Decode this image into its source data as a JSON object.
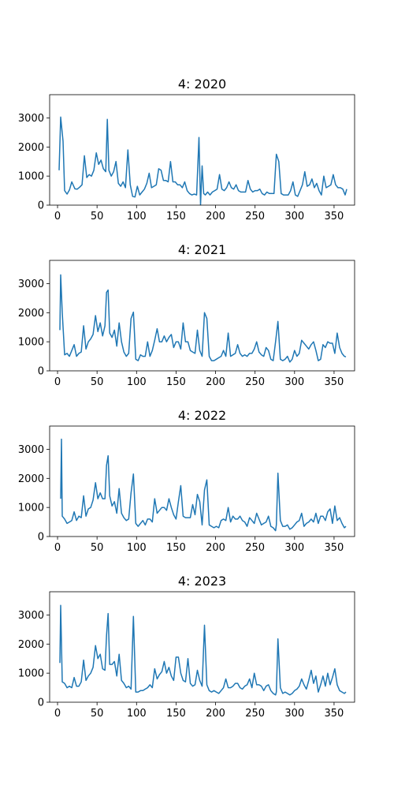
{
  "chart_data": [
    {
      "type": "line",
      "title": "4: 2020",
      "xlabel": "",
      "ylabel": "",
      "xlim": [
        -10,
        376
      ],
      "ylim": [
        0,
        3800
      ],
      "xticks": [
        0,
        50,
        100,
        150,
        200,
        250,
        300,
        350
      ],
      "yticks": [
        0,
        1000,
        2000,
        3000
      ],
      "color": "#1f77b4",
      "series": [
        {
          "x": [
            2,
            4,
            7,
            9,
            12,
            15,
            18,
            22,
            25,
            28,
            31,
            34,
            37,
            40,
            43,
            46,
            49,
            52,
            55,
            58,
            61,
            63,
            65,
            68,
            71,
            74,
            77,
            80,
            83,
            86,
            89,
            92,
            95,
            98,
            101,
            104,
            107,
            110,
            113,
            116,
            119,
            122,
            125,
            128,
            131,
            134,
            137,
            140,
            143,
            146,
            149,
            152,
            155,
            158,
            161,
            164,
            167,
            170,
            173,
            176,
            179,
            181,
            183,
            185,
            187,
            190,
            193,
            196,
            199,
            202,
            205,
            208,
            211,
            214,
            217,
            220,
            223,
            226,
            229,
            232,
            235,
            238,
            241,
            244,
            247,
            250,
            253,
            256,
            259,
            262,
            265,
            268,
            271,
            274,
            277,
            280,
            283,
            286,
            289,
            292,
            295,
            298,
            301,
            304,
            307,
            310,
            313,
            316,
            319,
            322,
            325,
            328,
            331,
            334,
            337,
            340,
            343,
            346,
            349,
            352,
            355,
            358,
            361,
            364,
            366
          ],
          "y": [
            1200,
            3030,
            2200,
            500,
            380,
            520,
            800,
            560,
            550,
            620,
            700,
            1700,
            950,
            1050,
            1000,
            1200,
            1800,
            1400,
            1550,
            1250,
            1150,
            2950,
            1200,
            1000,
            1150,
            1500,
            750,
            650,
            800,
            600,
            1900,
            700,
            300,
            280,
            650,
            350,
            450,
            550,
            750,
            1100,
            600,
            650,
            700,
            1250,
            1200,
            850,
            850,
            800,
            1500,
            800,
            800,
            700,
            700,
            600,
            800,
            500,
            400,
            350,
            380,
            350,
            2330,
            10,
            1350,
            400,
            350,
            450,
            350,
            450,
            500,
            550,
            1050,
            550,
            500,
            600,
            800,
            600,
            550,
            700,
            500,
            450,
            450,
            450,
            850,
            550,
            450,
            500,
            500,
            550,
            400,
            350,
            450,
            400,
            400,
            400,
            1750,
            1500,
            400,
            350,
            350,
            350,
            500,
            800,
            350,
            300,
            500,
            700,
            1150,
            650,
            700,
            900,
            600,
            750,
            500,
            350,
            1000,
            600,
            650,
            700,
            1050,
            700,
            600,
            600,
            550,
            350,
            550
          ]
        }
      ]
    },
    {
      "type": "line",
      "title": "4: 2021",
      "xlabel": "",
      "ylabel": "",
      "xlim": [
        -10,
        376
      ],
      "ylim": [
        0,
        3800
      ],
      "xticks": [
        0,
        50,
        100,
        150,
        200,
        250,
        300,
        350
      ],
      "yticks": [
        0,
        1000,
        2000,
        3000
      ],
      "color": "#1f77b4",
      "series": [
        {
          "x": [
            3,
            4,
            6,
            9,
            12,
            15,
            18,
            21,
            24,
            27,
            30,
            33,
            36,
            39,
            42,
            45,
            48,
            51,
            54,
            57,
            60,
            62,
            64,
            66,
            69,
            72,
            75,
            78,
            81,
            84,
            87,
            90,
            93,
            96,
            99,
            102,
            105,
            108,
            111,
            114,
            117,
            120,
            123,
            126,
            129,
            132,
            135,
            138,
            141,
            144,
            147,
            150,
            153,
            156,
            159,
            162,
            165,
            168,
            171,
            174,
            177,
            180,
            183,
            186,
            189,
            192,
            195,
            198,
            201,
            204,
            207,
            210,
            213,
            216,
            219,
            222,
            225,
            228,
            231,
            234,
            237,
            240,
            243,
            246,
            249,
            252,
            255,
            258,
            261,
            264,
            267,
            270,
            273,
            276,
            279,
            282,
            285,
            288,
            291,
            294,
            297,
            300,
            303,
            306,
            309,
            312,
            315,
            318,
            321,
            324,
            327,
            330,
            333,
            336,
            339,
            342,
            345,
            348,
            351,
            354,
            357,
            360,
            363,
            365
          ],
          "y": [
            1400,
            3300,
            2000,
            550,
            600,
            500,
            700,
            900,
            500,
            600,
            650,
            1550,
            750,
            1000,
            1100,
            1250,
            1900,
            1350,
            1650,
            1200,
            1550,
            2700,
            2780,
            1300,
            1150,
            1400,
            850,
            1650,
            1000,
            650,
            500,
            600,
            1800,
            2020,
            400,
            350,
            550,
            500,
            500,
            1000,
            500,
            700,
            1050,
            1450,
            1000,
            1000,
            1200,
            1000,
            1150,
            1250,
            800,
            1000,
            1000,
            750,
            1650,
            1000,
            1000,
            700,
            650,
            600,
            1400,
            700,
            500,
            2000,
            1800,
            500,
            350,
            350,
            400,
            450,
            500,
            700,
            500,
            1300,
            500,
            550,
            600,
            900,
            600,
            500,
            550,
            500,
            600,
            600,
            750,
            1000,
            650,
            550,
            500,
            800,
            700,
            400,
            350,
            1000,
            1700,
            400,
            350,
            400,
            500,
            300,
            400,
            700,
            500,
            600,
            1050,
            950,
            850,
            750,
            900,
            1000,
            700,
            350,
            400,
            900,
            800,
            1000,
            950,
            950,
            600,
            1300,
            800,
            600,
            500,
            480
          ]
        }
      ]
    },
    {
      "type": "line",
      "title": "4: 2022",
      "xlabel": "",
      "ylabel": "",
      "xlim": [
        -10,
        376
      ],
      "ylim": [
        0,
        3800
      ],
      "xticks": [
        0,
        50,
        100,
        150,
        200,
        250,
        300,
        350
      ],
      "yticks": [
        0,
        1000,
        2000,
        3000
      ],
      "color": "#1f77b4",
      "series": [
        {
          "x": [
            4,
            5,
            6,
            9,
            12,
            15,
            18,
            21,
            24,
            27,
            30,
            33,
            36,
            39,
            42,
            45,
            48,
            51,
            54,
            57,
            60,
            62,
            64,
            66,
            69,
            72,
            75,
            78,
            81,
            84,
            87,
            90,
            93,
            96,
            99,
            102,
            105,
            108,
            111,
            114,
            117,
            120,
            123,
            126,
            129,
            132,
            135,
            138,
            141,
            144,
            147,
            150,
            153,
            156,
            159,
            162,
            165,
            168,
            171,
            174,
            177,
            180,
            183,
            186,
            189,
            192,
            195,
            198,
            201,
            204,
            207,
            210,
            213,
            216,
            219,
            222,
            225,
            228,
            231,
            234,
            237,
            240,
            243,
            246,
            249,
            252,
            255,
            258,
            261,
            264,
            267,
            270,
            273,
            276,
            277,
            279,
            282,
            285,
            288,
            291,
            294,
            297,
            300,
            303,
            306,
            309,
            312,
            315,
            318,
            321,
            324,
            327,
            330,
            333,
            336,
            339,
            342,
            345,
            348,
            351,
            354,
            357,
            360,
            363,
            365
          ],
          "y": [
            1300,
            3350,
            700,
            600,
            450,
            500,
            550,
            850,
            550,
            700,
            650,
            1400,
            700,
            950,
            1000,
            1250,
            1850,
            1300,
            1500,
            1300,
            1300,
            2450,
            2780,
            1400,
            1050,
            1200,
            800,
            1650,
            800,
            650,
            550,
            600,
            1500,
            2150,
            450,
            350,
            450,
            550,
            400,
            600,
            600,
            500,
            1300,
            800,
            900,
            1000,
            1000,
            900,
            1300,
            1000,
            750,
            600,
            1200,
            1750,
            700,
            650,
            650,
            650,
            1100,
            750,
            1450,
            1200,
            400,
            1600,
            1950,
            400,
            350,
            300,
            350,
            300,
            550,
            600,
            550,
            1000,
            500,
            700,
            600,
            600,
            700,
            550,
            500,
            350,
            650,
            550,
            450,
            800,
            600,
            400,
            450,
            500,
            700,
            350,
            300,
            200,
            400,
            2180,
            550,
            350,
            350,
            400,
            250,
            300,
            400,
            500,
            550,
            800,
            350,
            450,
            500,
            600,
            500,
            800,
            450,
            700,
            700,
            550,
            850,
            950,
            450,
            1050,
            550,
            650,
            450,
            300,
            350
          ]
        }
      ]
    },
    {
      "type": "line",
      "title": "4: 2023",
      "xlabel": "",
      "ylabel": "",
      "xlim": [
        -10,
        376
      ],
      "ylim": [
        0,
        3800
      ],
      "xticks": [
        0,
        50,
        100,
        150,
        200,
        250,
        300,
        350
      ],
      "yticks": [
        0,
        1000,
        2000,
        3000
      ],
      "color": "#1f77b4",
      "series": [
        {
          "x": [
            3,
            4,
            6,
            9,
            12,
            15,
            18,
            21,
            24,
            27,
            30,
            33,
            36,
            39,
            42,
            45,
            48,
            51,
            54,
            57,
            60,
            62,
            64,
            66,
            69,
            72,
            75,
            78,
            81,
            84,
            87,
            90,
            93,
            96,
            99,
            102,
            105,
            108,
            111,
            114,
            117,
            120,
            123,
            126,
            129,
            132,
            135,
            138,
            141,
            144,
            147,
            150,
            153,
            156,
            159,
            162,
            165,
            168,
            171,
            174,
            177,
            180,
            183,
            186,
            189,
            192,
            195,
            198,
            201,
            204,
            207,
            210,
            213,
            216,
            219,
            222,
            225,
            228,
            231,
            234,
            237,
            240,
            243,
            246,
            249,
            252,
            255,
            258,
            261,
            264,
            267,
            270,
            273,
            276,
            277,
            279,
            282,
            285,
            288,
            291,
            294,
            297,
            300,
            303,
            306,
            309,
            312,
            315,
            318,
            321,
            324,
            327,
            330,
            333,
            336,
            339,
            342,
            345,
            348,
            351,
            354,
            357,
            360,
            363,
            365
          ],
          "y": [
            1350,
            3330,
            700,
            650,
            500,
            550,
            500,
            850,
            550,
            550,
            700,
            1450,
            750,
            900,
            1000,
            1200,
            1950,
            1500,
            1650,
            1150,
            1100,
            2300,
            3050,
            1300,
            1300,
            1400,
            900,
            1650,
            750,
            650,
            500,
            550,
            450,
            2950,
            350,
            350,
            400,
            400,
            450,
            500,
            600,
            500,
            1150,
            800,
            950,
            1050,
            1400,
            1000,
            1200,
            900,
            750,
            1550,
            1550,
            1000,
            750,
            700,
            1500,
            650,
            550,
            600,
            1100,
            750,
            550,
            2650,
            600,
            400,
            350,
            400,
            350,
            300,
            400,
            500,
            800,
            500,
            500,
            550,
            650,
            650,
            500,
            450,
            550,
            600,
            800,
            500,
            1000,
            600,
            600,
            550,
            400,
            550,
            600,
            400,
            300,
            250,
            350,
            2180,
            500,
            300,
            350,
            300,
            250,
            300,
            400,
            450,
            550,
            800,
            600,
            450,
            750,
            1100,
            650,
            900,
            350,
            600,
            900,
            550,
            1000,
            600,
            850,
            1150,
            600,
            400,
            350,
            300,
            350
          ]
        }
      ]
    }
  ]
}
